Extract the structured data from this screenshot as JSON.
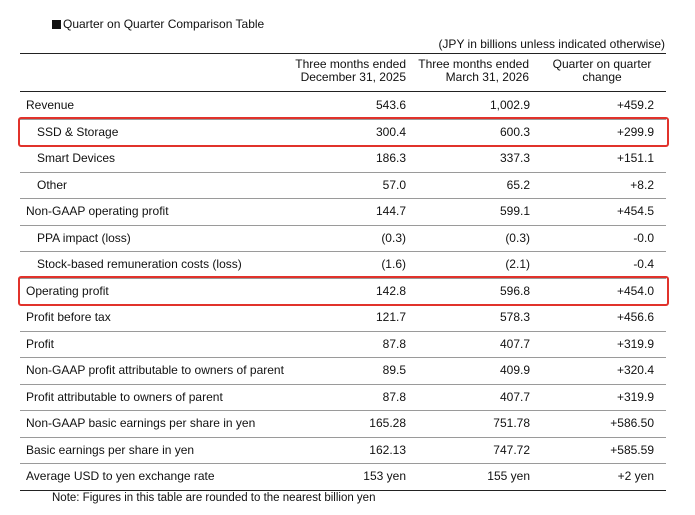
{
  "table": {
    "title": "Quarter on Quarter Comparison Table",
    "unit_note": "(JPY in billions unless indicated otherwise)",
    "columns": [
      {
        "line1": "Three months ended",
        "line2": "December 31, 2025"
      },
      {
        "line1": "Three months ended",
        "line2": "March 31, 2026"
      },
      {
        "line1": "Quarter on quarter",
        "line2": "change"
      }
    ],
    "rows": [
      {
        "label": "Revenue",
        "v1": "543.6",
        "v2": "1,002.9",
        "v3": "+459.2",
        "indent": false,
        "highlight": false
      },
      {
        "label": "SSD & Storage",
        "v1": "300.4",
        "v2": "600.3",
        "v3": "+299.9",
        "indent": true,
        "highlight": true
      },
      {
        "label": "Smart Devices",
        "v1": "186.3",
        "v2": "337.3",
        "v3": "+151.1",
        "indent": true,
        "highlight": false
      },
      {
        "label": "Other",
        "v1": "57.0",
        "v2": "65.2",
        "v3": "+8.2",
        "indent": true,
        "highlight": false
      },
      {
        "label": "Non-GAAP operating profit",
        "v1": "144.7",
        "v2": "599.1",
        "v3": "+454.5",
        "indent": false,
        "highlight": false
      },
      {
        "label": "PPA impact (loss)",
        "v1": "(0.3)",
        "v2": "(0.3)",
        "v3": "-0.0",
        "indent": true,
        "highlight": false
      },
      {
        "label": "Stock-based remuneration costs (loss)",
        "v1": "(1.6)",
        "v2": "(2.1)",
        "v3": "-0.4",
        "indent": true,
        "highlight": false
      },
      {
        "label": "Operating profit",
        "v1": "142.8",
        "v2": "596.8",
        "v3": "+454.0",
        "indent": false,
        "highlight": true
      },
      {
        "label": "Profit before tax",
        "v1": "121.7",
        "v2": "578.3",
        "v3": "+456.6",
        "indent": false,
        "highlight": false
      },
      {
        "label": "Profit",
        "v1": "87.8",
        "v2": "407.7",
        "v3": "+319.9",
        "indent": false,
        "highlight": false
      },
      {
        "label": "Non-GAAP profit attributable to owners of parent",
        "v1": "89.5",
        "v2": "409.9",
        "v3": "+320.4",
        "indent": false,
        "highlight": false
      },
      {
        "label": "Profit attributable to owners of parent",
        "v1": "87.8",
        "v2": "407.7",
        "v3": "+319.9",
        "indent": false,
        "highlight": false
      },
      {
        "label": "Non-GAAP basic earnings per share in yen",
        "v1": "165.28",
        "v2": "751.78",
        "v3": "+586.50",
        "indent": false,
        "highlight": false
      },
      {
        "label": "Basic earnings per share in yen",
        "v1": "162.13",
        "v2": "747.72",
        "v3": "+585.59",
        "indent": false,
        "highlight": false
      },
      {
        "label": "Average USD to yen exchange rate",
        "v1": "153 yen",
        "v2": "155 yen",
        "v3": "+2 yen",
        "indent": false,
        "highlight": false
      }
    ],
    "note": "Note: Figures in this table are rounded to the nearest billion yen",
    "highlight_color": "#e1322b"
  }
}
